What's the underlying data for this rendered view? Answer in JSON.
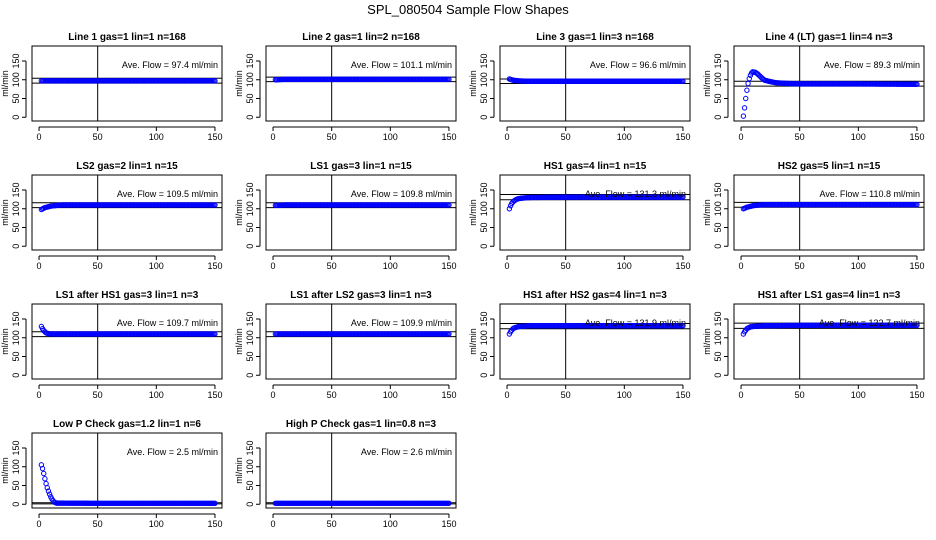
{
  "page_title": "SPL_080504  Sample Flow Shapes",
  "colors": {
    "points": "#0000ff",
    "axes": "#000000",
    "background": "#ffffff"
  },
  "chart_data": [
    {
      "type": "scatter",
      "title": "Line 1 gas=1 lin=1 n=168",
      "ylabel": "ml/min",
      "xlim": [
        0,
        150
      ],
      "ylim": [
        -10,
        190
      ],
      "xticks": [
        0,
        50,
        100,
        150
      ],
      "yticks": [
        0,
        50,
        100,
        150
      ],
      "vline": 50,
      "hlines": [
        91,
        104
      ],
      "annotation": "Ave. Flow =  97.4  ml/min",
      "series": [
        {
          "x": [
            2,
            10,
            20,
            50,
            100,
            150
          ],
          "y": [
            97,
            97,
            97,
            97,
            97,
            97
          ]
        }
      ]
    },
    {
      "type": "scatter",
      "title": "Line 2 gas=1 lin=2 n=168",
      "ylabel": "ml/min",
      "xlim": [
        0,
        150
      ],
      "ylim": [
        -10,
        190
      ],
      "xticks": [
        0,
        50,
        100,
        150
      ],
      "yticks": [
        0,
        50,
        100,
        150
      ],
      "vline": 50,
      "hlines": [
        95,
        107
      ],
      "annotation": "Ave. Flow =  101.1  ml/min",
      "series": [
        {
          "x": [
            2,
            10,
            20,
            50,
            100,
            150
          ],
          "y": [
            100,
            101,
            101,
            101,
            101,
            101
          ]
        }
      ]
    },
    {
      "type": "scatter",
      "title": "Line 3 gas=1 lin=3 n=168",
      "ylabel": "ml/min",
      "xlim": [
        0,
        150
      ],
      "ylim": [
        -10,
        190
      ],
      "xticks": [
        0,
        50,
        100,
        150
      ],
      "yticks": [
        0,
        50,
        100,
        150
      ],
      "vline": 50,
      "hlines": [
        90,
        102
      ],
      "annotation": "Ave. Flow =  96.6  ml/min",
      "series": [
        {
          "x": [
            2,
            5,
            10,
            20,
            50,
            100,
            150
          ],
          "y": [
            102,
            99,
            97,
            96,
            96,
            96,
            96
          ]
        }
      ]
    },
    {
      "type": "scatter",
      "title": "Line 4 (LT) gas=1 lin=4 n=3",
      "ylabel": "ml/min",
      "xlim": [
        0,
        150
      ],
      "ylim": [
        -10,
        190
      ],
      "xticks": [
        0,
        50,
        100,
        150
      ],
      "yticks": [
        0,
        50,
        100,
        150
      ],
      "vline": 50,
      "hlines": [
        83,
        96
      ],
      "annotation": "Ave. Flow =  89.3  ml/min",
      "series": [
        {
          "x": [
            2,
            3,
            4,
            5,
            6,
            7,
            8,
            9,
            10,
            12,
            14,
            16,
            18,
            20,
            25,
            30,
            40,
            50,
            75,
            100,
            150
          ],
          "y": [
            3,
            25,
            50,
            72,
            90,
            103,
            112,
            118,
            121,
            120,
            116,
            110,
            104,
            99,
            95,
            92,
            90,
            89,
            89,
            89,
            88
          ]
        }
      ]
    },
    {
      "type": "scatter",
      "title": "LS2 gas=2 lin=1 n=15",
      "ylabel": "ml/min",
      "xlim": [
        0,
        150
      ],
      "ylim": [
        -10,
        190
      ],
      "xticks": [
        0,
        50,
        100,
        150
      ],
      "yticks": [
        0,
        50,
        100,
        150
      ],
      "vline": 50,
      "hlines": [
        103,
        116
      ],
      "annotation": "Ave. Flow =  109.5  ml/min",
      "series": [
        {
          "x": [
            2,
            5,
            10,
            15,
            20,
            50,
            100,
            150
          ],
          "y": [
            98,
            103,
            107,
            109,
            110,
            110,
            110,
            110
          ]
        }
      ]
    },
    {
      "type": "scatter",
      "title": "LS1 gas=3 lin=1 n=15",
      "ylabel": "ml/min",
      "xlim": [
        0,
        150
      ],
      "ylim": [
        -10,
        190
      ],
      "xticks": [
        0,
        50,
        100,
        150
      ],
      "yticks": [
        0,
        50,
        100,
        150
      ],
      "vline": 50,
      "hlines": [
        103,
        116
      ],
      "annotation": "Ave. Flow =  109.8  ml/min",
      "series": [
        {
          "x": [
            2,
            10,
            20,
            50,
            100,
            150
          ],
          "y": [
            109,
            110,
            110,
            110,
            110,
            110
          ]
        }
      ]
    },
    {
      "type": "scatter",
      "title": "HS1 gas=4 lin=1 n=15",
      "ylabel": "ml/min",
      "xlim": [
        0,
        150
      ],
      "ylim": [
        -10,
        190
      ],
      "xticks": [
        0,
        50,
        100,
        150
      ],
      "yticks": [
        0,
        50,
        100,
        150
      ],
      "vline": 50,
      "hlines": [
        124,
        138
      ],
      "annotation": "Ave. Flow =  131.3  ml/min",
      "series": [
        {
          "x": [
            2,
            3,
            4,
            5,
            6,
            7,
            8,
            10,
            12,
            15,
            20,
            50,
            100,
            150
          ],
          "y": [
            100,
            108,
            114,
            118,
            121,
            123,
            125,
            127,
            128,
            129,
            130,
            131,
            131,
            131
          ]
        }
      ]
    },
    {
      "type": "scatter",
      "title": "HS2 gas=5 lin=1 n=15",
      "ylabel": "ml/min",
      "xlim": [
        0,
        150
      ],
      "ylim": [
        -10,
        190
      ],
      "xticks": [
        0,
        50,
        100,
        150
      ],
      "yticks": [
        0,
        50,
        100,
        150
      ],
      "vline": 50,
      "hlines": [
        104,
        117
      ],
      "annotation": "Ave. Flow =  110.8  ml/min",
      "series": [
        {
          "x": [
            2,
            5,
            10,
            15,
            20,
            50,
            100,
            150
          ],
          "y": [
            100,
            104,
            108,
            110,
            111,
            111,
            111,
            111
          ]
        }
      ]
    },
    {
      "type": "scatter",
      "title": "LS1 after HS1 gas=3 lin=1 n=3",
      "ylabel": "ml/min",
      "xlim": [
        0,
        150
      ],
      "ylim": [
        -10,
        190
      ],
      "xticks": [
        0,
        50,
        100,
        150
      ],
      "yticks": [
        0,
        50,
        100,
        150
      ],
      "vline": 50,
      "hlines": [
        103,
        116
      ],
      "annotation": "Ave. Flow =  109.7  ml/min",
      "series": [
        {
          "x": [
            2,
            3,
            4,
            5,
            6,
            8,
            10,
            15,
            20,
            50,
            100,
            150
          ],
          "y": [
            130,
            124,
            119,
            116,
            113,
            111,
            110,
            110,
            110,
            110,
            110,
            110
          ]
        }
      ]
    },
    {
      "type": "scatter",
      "title": "LS1 after LS2 gas=3 lin=1 n=3",
      "ylabel": "ml/min",
      "xlim": [
        0,
        150
      ],
      "ylim": [
        -10,
        190
      ],
      "xticks": [
        0,
        50,
        100,
        150
      ],
      "yticks": [
        0,
        50,
        100,
        150
      ],
      "vline": 50,
      "hlines": [
        103,
        116
      ],
      "annotation": "Ave. Flow =  109.9  ml/min",
      "series": [
        {
          "x": [
            2,
            10,
            20,
            50,
            100,
            150
          ],
          "y": [
            110,
            110,
            110,
            110,
            110,
            110
          ]
        }
      ]
    },
    {
      "type": "scatter",
      "title": "HS1 after HS2 gas=4 lin=1 n=3",
      "ylabel": "ml/min",
      "xlim": [
        0,
        150
      ],
      "ylim": [
        -10,
        190
      ],
      "xticks": [
        0,
        50,
        100,
        150
      ],
      "yticks": [
        0,
        50,
        100,
        150
      ],
      "vline": 50,
      "hlines": [
        124,
        138
      ],
      "annotation": "Ave. Flow =  131.9  ml/min",
      "series": [
        {
          "x": [
            2,
            3,
            4,
            5,
            6,
            8,
            10,
            15,
            20,
            50,
            100,
            150
          ],
          "y": [
            110,
            116,
            120,
            124,
            126,
            128,
            130,
            131,
            132,
            132,
            132,
            132
          ]
        }
      ]
    },
    {
      "type": "scatter",
      "title": "HS1 after LS1 gas=4 lin=1 n=3",
      "ylabel": "ml/min",
      "xlim": [
        0,
        150
      ],
      "ylim": [
        -10,
        190
      ],
      "xticks": [
        0,
        50,
        100,
        150
      ],
      "yticks": [
        0,
        50,
        100,
        150
      ],
      "vline": 50,
      "hlines": [
        125,
        139
      ],
      "annotation": "Ave. Flow =  132.7  ml/min",
      "series": [
        {
          "x": [
            2,
            3,
            4,
            5,
            6,
            8,
            10,
            15,
            20,
            50,
            100,
            150
          ],
          "y": [
            110,
            116,
            120,
            124,
            126,
            129,
            130,
            131,
            132,
            133,
            133,
            133
          ]
        }
      ]
    },
    {
      "type": "scatter",
      "title": "Low P Check gas=1.2 lin=1 n=6",
      "ylabel": "ml/min",
      "xlim": [
        0,
        150
      ],
      "ylim": [
        -10,
        190
      ],
      "xticks": [
        0,
        50,
        100,
        150
      ],
      "yticks": [
        0,
        50,
        100,
        150
      ],
      "vline": 50,
      "hlines": [
        1,
        4
      ],
      "annotation": "Ave. Flow =  2.5  ml/min",
      "series": [
        {
          "x": [
            2,
            3,
            4,
            5,
            6,
            7,
            8,
            9,
            10,
            11,
            12,
            13,
            14,
            15,
            20,
            50,
            100,
            150
          ],
          "y": [
            105,
            95,
            82,
            68,
            55,
            44,
            35,
            27,
            20,
            14,
            9,
            6,
            4,
            3,
            3,
            2.5,
            2.5,
            2.5
          ]
        }
      ]
    },
    {
      "type": "scatter",
      "title": "High P Check gas=1 lin=0.8 n=3",
      "ylabel": "ml/min",
      "xlim": [
        0,
        150
      ],
      "ylim": [
        -10,
        190
      ],
      "xticks": [
        0,
        50,
        100,
        150
      ],
      "yticks": [
        0,
        50,
        100,
        150
      ],
      "vline": 50,
      "hlines": [
        1,
        4
      ],
      "annotation": "Ave. Flow =  2.6  ml/min",
      "series": [
        {
          "x": [
            2,
            10,
            20,
            50,
            100,
            150
          ],
          "y": [
            2.6,
            2.6,
            2.6,
            2.6,
            2.6,
            2.6
          ]
        }
      ]
    }
  ]
}
